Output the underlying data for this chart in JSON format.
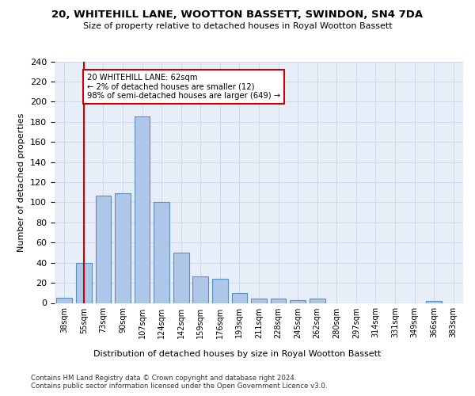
{
  "title": "20, WHITEHILL LANE, WOOTTON BASSETT, SWINDON, SN4 7DA",
  "subtitle": "Size of property relative to detached houses in Royal Wootton Bassett",
  "xlabel": "Distribution of detached houses by size in Royal Wootton Bassett",
  "ylabel": "Number of detached properties",
  "categories": [
    "38sqm",
    "55sqm",
    "73sqm",
    "90sqm",
    "107sqm",
    "124sqm",
    "142sqm",
    "159sqm",
    "176sqm",
    "193sqm",
    "211sqm",
    "228sqm",
    "245sqm",
    "262sqm",
    "280sqm",
    "297sqm",
    "314sqm",
    "331sqm",
    "349sqm",
    "366sqm",
    "383sqm"
  ],
  "values": [
    5,
    40,
    107,
    109,
    185,
    100,
    50,
    26,
    24,
    10,
    4,
    4,
    3,
    4,
    0,
    0,
    0,
    0,
    0,
    2,
    0
  ],
  "bar_color": "#aec6e8",
  "bar_edge_color": "#5a8fc2",
  "vline_x": 1,
  "vline_color": "#cc0000",
  "annotation_text": "20 WHITEHILL LANE: 62sqm\n← 2% of detached houses are smaller (12)\n98% of semi-detached houses are larger (649) →",
  "annotation_box_color": "#ffffff",
  "annotation_box_edge": "#cc0000",
  "ylim": [
    0,
    240
  ],
  "yticks": [
    0,
    20,
    40,
    60,
    80,
    100,
    120,
    140,
    160,
    180,
    200,
    220,
    240
  ],
  "grid_color": "#d0d8e8",
  "bg_color": "#e8eef8",
  "footer1": "Contains HM Land Registry data © Crown copyright and database right 2024.",
  "footer2": "Contains public sector information licensed under the Open Government Licence v3.0."
}
